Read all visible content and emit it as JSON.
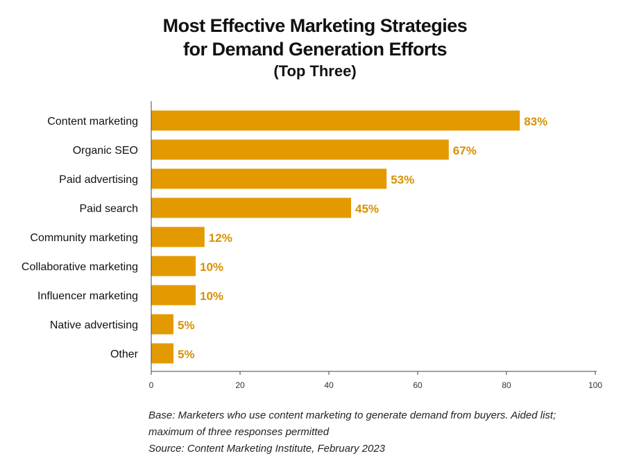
{
  "header": {
    "title_line1": "Most Effective Marketing Strategies",
    "title_line2": "for Demand Generation Efforts",
    "subtitle": "(Top Three)"
  },
  "colors": {
    "bar": "#E39A00",
    "value_label": "#D89000",
    "axis": "#444444"
  },
  "chart_data": {
    "type": "bar",
    "orientation": "horizontal",
    "title": "Most Effective Marketing Strategies for Demand Generation Efforts (Top Three)",
    "categories": [
      "Content marketing",
      "Organic SEO",
      "Paid advertising",
      "Paid search",
      "Community marketing",
      "Collaborative marketing",
      "Influencer marketing",
      "Native advertising",
      "Other"
    ],
    "values": [
      83,
      67,
      53,
      45,
      12,
      10,
      10,
      5,
      5
    ],
    "value_labels": [
      "83%",
      "67%",
      "53%",
      "45%",
      "12%",
      "10%",
      "10%",
      "5%",
      "5%"
    ],
    "xlim": [
      0,
      100
    ],
    "xticks": [
      0,
      20,
      40,
      60,
      80,
      100
    ],
    "xtick_labels": [
      "0",
      "20",
      "40",
      "60",
      "80",
      "100"
    ],
    "grid": false,
    "legend": "none"
  },
  "footnote": {
    "line1": "Base: Marketers who use content marketing to generate demand from buyers. Aided list;",
    "line2": "maximum of three responses permitted",
    "line3": "Source: Content Marketing Institute, February 2023"
  }
}
